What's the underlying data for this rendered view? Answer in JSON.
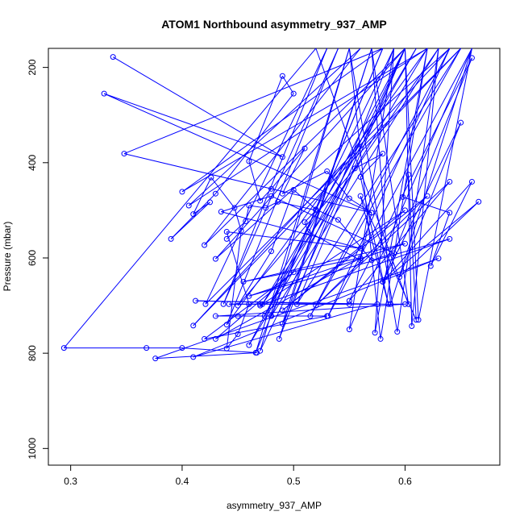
{
  "chart_data": {
    "type": "line",
    "title": "ATOM1 Northbound asymmetry_937_AMP",
    "xlabel": "asymmetry_937_AMP",
    "ylabel": "Pressure (mbar)",
    "xlim": [
      0.28,
      0.685
    ],
    "ylim": [
      1035,
      160
    ],
    "y_reversed": true,
    "x_ticks": [
      0.3,
      0.4,
      0.5,
      0.6
    ],
    "x_tick_labels": [
      "0.3",
      "0.4",
      "0.5",
      "0.6"
    ],
    "y_ticks": [
      200,
      400,
      600,
      800,
      1000
    ],
    "y_tick_labels": [
      "200",
      "400",
      "600",
      "800",
      "1000"
    ],
    "grid": false,
    "legend": "none",
    "series_color": "#0000ff",
    "series": [
      {
        "points": [
          [
            0.338,
            178
          ],
          [
            0.49,
            388
          ],
          [
            0.33,
            255
          ],
          [
            0.57,
            505
          ],
          [
            0.348,
            381
          ],
          [
            0.58,
            160
          ],
          [
            0.4,
            461
          ],
          [
            0.62,
            160
          ],
          [
            0.406,
            490
          ],
          [
            0.56,
            160
          ],
          [
            0.42,
            573
          ],
          [
            0.6,
            160
          ],
          [
            0.43,
            602
          ],
          [
            0.64,
            160
          ],
          [
            0.41,
            742
          ],
          [
            0.65,
            160
          ],
          [
            0.421,
            697
          ],
          [
            0.53,
            160
          ],
          [
            0.437,
            697
          ],
          [
            0.54,
            160
          ],
          [
            0.44,
            740
          ],
          [
            0.62,
            160
          ],
          [
            0.46,
            783
          ],
          [
            0.6,
            160
          ],
          [
            0.47,
            795
          ],
          [
            0.55,
            160
          ],
          [
            0.466,
            799
          ],
          [
            0.58,
            160
          ],
          [
            0.48,
            722
          ],
          [
            0.63,
            160
          ],
          [
            0.472,
            697
          ],
          [
            0.61,
            160
          ],
          [
            0.474,
            722
          ],
          [
            0.59,
            160
          ],
          [
            0.487,
            770
          ],
          [
            0.57,
            160
          ],
          [
            0.49,
            738
          ],
          [
            0.6,
            160
          ],
          [
            0.503,
            697
          ],
          [
            0.65,
            160
          ],
          [
            0.515,
            722
          ],
          [
            0.64,
            160
          ],
          [
            0.531,
            722
          ],
          [
            0.66,
            160
          ],
          [
            0.55,
            750
          ],
          [
            0.59,
            160
          ],
          [
            0.573,
            757
          ],
          [
            0.62,
            160
          ],
          [
            0.578,
            770
          ],
          [
            0.55,
            160
          ],
          [
            0.593,
            755
          ],
          [
            0.63,
            160
          ],
          [
            0.606,
            743
          ],
          [
            0.6,
            160
          ],
          [
            0.612,
            730
          ],
          [
            0.66,
            160
          ],
          [
            0.587,
            697
          ],
          [
            0.57,
            160
          ],
          [
            0.603,
            697
          ],
          [
            0.52,
            160
          ],
          [
            0.294,
            789
          ],
          [
            0.368,
            789
          ],
          [
            0.4,
            789
          ],
          [
            0.467,
            799
          ],
          [
            0.376,
            811
          ],
          [
            0.63,
            601
          ],
          [
            0.41,
            808
          ],
          [
            0.575,
            697
          ],
          [
            0.412,
            690
          ],
          [
            0.55,
            697
          ],
          [
            0.46,
            697
          ],
          [
            0.442,
            697
          ],
          [
            0.47,
            697
          ],
          [
            0.6,
            697
          ],
          [
            0.43,
            722
          ],
          [
            0.48,
            722
          ],
          [
            0.45,
            722
          ],
          [
            0.53,
            722
          ],
          [
            0.42,
            770
          ],
          [
            0.5,
            630
          ],
          [
            0.43,
            770
          ],
          [
            0.56,
            600
          ],
          [
            0.455,
            650
          ],
          [
            0.6,
            570
          ],
          [
            0.46,
            680
          ],
          [
            0.64,
            560
          ],
          [
            0.47,
            700
          ],
          [
            0.6,
            500
          ],
          [
            0.49,
            710
          ],
          [
            0.62,
            470
          ],
          [
            0.52,
            700
          ],
          [
            0.64,
            440
          ],
          [
            0.55,
            690
          ],
          [
            0.66,
            180
          ],
          [
            0.58,
            650
          ],
          [
            0.65,
            316
          ],
          [
            0.595,
            640
          ],
          [
            0.666,
            482
          ],
          [
            0.58,
            650
          ],
          [
            0.66,
            440
          ],
          [
            0.623,
            617
          ],
          [
            0.64,
            505
          ],
          [
            0.598,
            472
          ],
          [
            0.603,
            425
          ],
          [
            0.61,
            730
          ],
          [
            0.56,
            470
          ],
          [
            0.585,
            697
          ],
          [
            0.56,
            430
          ],
          [
            0.58,
            381
          ],
          [
            0.555,
            412
          ],
          [
            0.45,
            700
          ],
          [
            0.48,
            586
          ],
          [
            0.5,
            457
          ],
          [
            0.52,
            498
          ],
          [
            0.54,
            520
          ],
          [
            0.57,
            605
          ],
          [
            0.59,
            590
          ],
          [
            0.48,
            470
          ],
          [
            0.435,
            503
          ],
          [
            0.56,
            580
          ],
          [
            0.44,
            545
          ],
          [
            0.46,
            697
          ],
          [
            0.45,
            760
          ],
          [
            0.44,
            790
          ],
          [
            0.453,
            543
          ],
          [
            0.447,
            495
          ],
          [
            0.426,
            431
          ],
          [
            0.41,
            508
          ],
          [
            0.425,
            483
          ],
          [
            0.39,
            560
          ],
          [
            0.43,
            465
          ],
          [
            0.5,
            255
          ],
          [
            0.49,
            218
          ],
          [
            0.46,
            397
          ],
          [
            0.47,
            480
          ],
          [
            0.48,
            455
          ],
          [
            0.51,
            370
          ],
          [
            0.49,
            465
          ],
          [
            0.53,
            418
          ],
          [
            0.55,
            475
          ],
          [
            0.57,
            505
          ],
          [
            0.56,
            605
          ],
          [
            0.513,
            545
          ],
          [
            0.51,
            525
          ],
          [
            0.52,
            500
          ],
          [
            0.486,
            482
          ],
          [
            0.475,
            495
          ],
          [
            0.46,
            490
          ],
          [
            0.457,
            523
          ],
          [
            0.44,
            560
          ]
        ]
      }
    ]
  }
}
